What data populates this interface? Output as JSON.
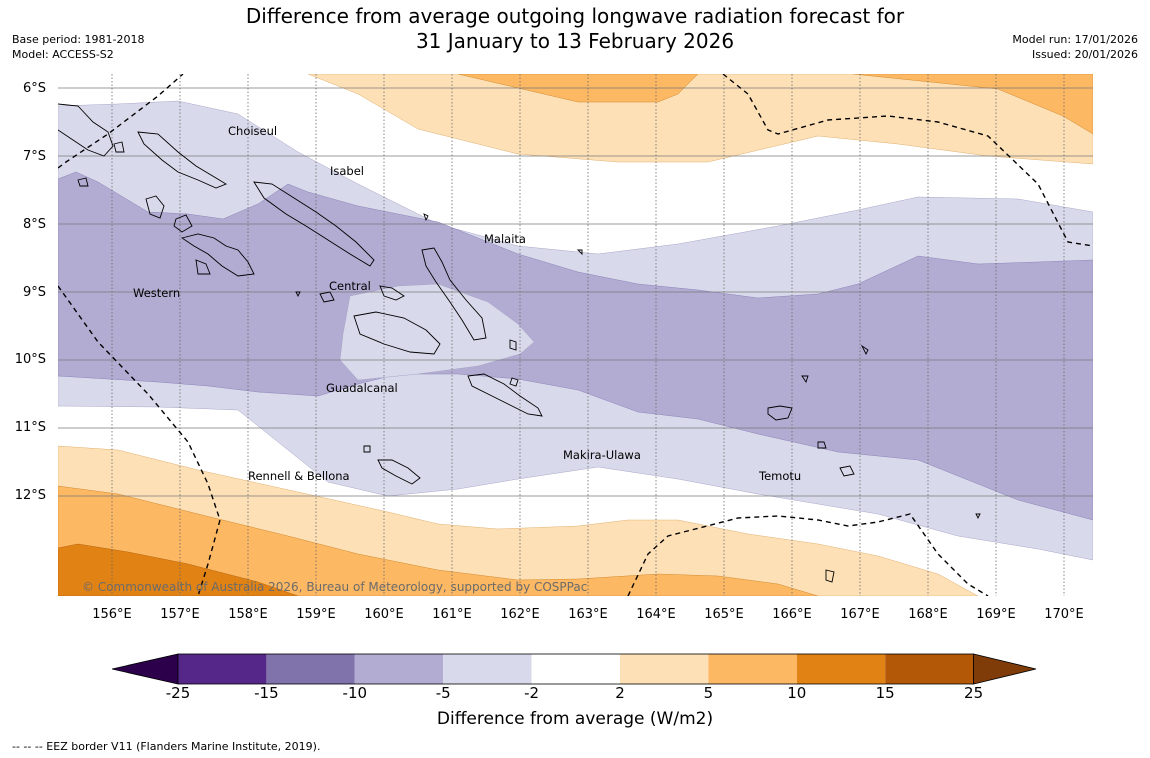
{
  "header": {
    "title_line1": "Difference from average outgoing longwave radiation forecast for",
    "title_line2": "31 January to 13 February 2026",
    "base_period": "Base period: 1981-2018",
    "model": "Model: ACCESS-S2",
    "model_run": "Model run: 17/01/2026",
    "issued": "Issued: 20/01/2026"
  },
  "map": {
    "lat_labels": [
      "6°S",
      "7°S",
      "8°S",
      "9°S",
      "10°S",
      "11°S",
      "12°S"
    ],
    "lon_labels": [
      "156°E",
      "157°E",
      "158°E",
      "159°E",
      "160°E",
      "161°E",
      "162°E",
      "163°E",
      "164°E",
      "165°E",
      "166°E",
      "167°E",
      "168°E",
      "169°E",
      "170°E"
    ],
    "regions": {
      "choiseul": "Choiseul",
      "isabel": "Isabel",
      "malaita": "Malaita",
      "western": "Western",
      "central": "Central",
      "guadalcanal": "Guadalcanal",
      "makira": "Makira-Ulawa",
      "rennell": "Rennell & Bellona",
      "temotu": "Temotu"
    },
    "copyright": "© Commonwealth of Australia 2026, Bureau of Meteorology, supported by COSPPac"
  },
  "colorbar": {
    "ticks": [
      "-25",
      "-15",
      "-10",
      "-5",
      "-2",
      "2",
      "5",
      "10",
      "15",
      "25"
    ],
    "colors": {
      "below_min": "#2d004b",
      "c1": "#542788",
      "c2": "#8073ac",
      "c3": "#b2abd2",
      "c4": "#d8daeb",
      "c5": "#ffffff",
      "c6": "#fee0b6",
      "c7": "#fdb863",
      "c8": "#e08214",
      "c9": "#b35806",
      "above_max": "#7f3b08"
    },
    "title": "Difference from average (W/m2)"
  },
  "legend": {
    "eez_note": "--  --  -- EEZ border V11 (Flanders Marine Institute, 2019)."
  }
}
